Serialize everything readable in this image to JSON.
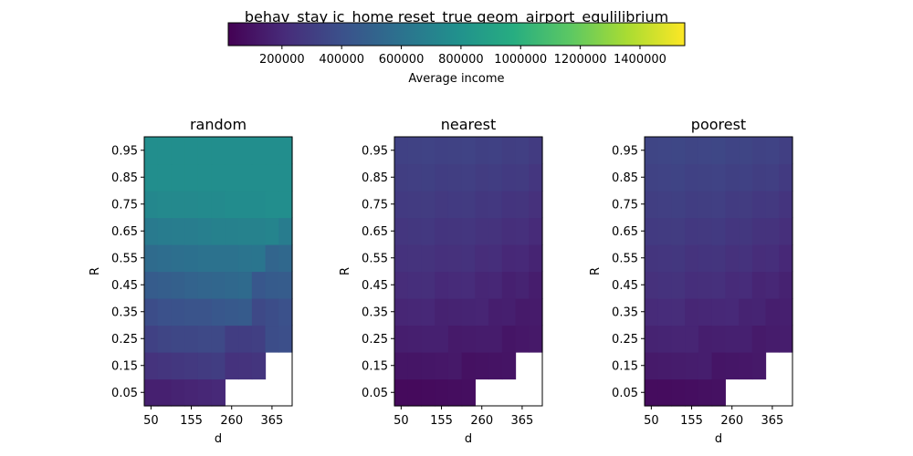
{
  "figure": {
    "title": "behav_stay ic_home reset_true geom_airport_equlilibrium"
  },
  "colorbar": {
    "label": "Average income",
    "colormap": "viridis",
    "range": [
      20000,
      1550000
    ],
    "ticks": [
      "200000",
      "400000",
      "600000",
      "800000",
      "1000000",
      "1200000",
      "1400000"
    ],
    "tick_values": [
      200000,
      400000,
      600000,
      800000,
      1000000,
      1200000,
      1400000
    ]
  },
  "chart_data": [
    {
      "type": "heatmap",
      "title": "random",
      "xlabel": "d",
      "ylabel": "R",
      "x": [
        50,
        85,
        120,
        155,
        190,
        225,
        260,
        295,
        330,
        365,
        400
      ],
      "y": [
        0.05,
        0.15,
        0.25,
        0.35,
        0.45,
        0.55,
        0.65,
        0.75,
        0.85,
        0.95
      ],
      "x_ticks": [
        "50",
        "155",
        "260",
        "365"
      ],
      "y_ticks": [
        "0.05",
        "0.15",
        "0.25",
        "0.35",
        "0.45",
        "0.55",
        "0.65",
        "0.75",
        "0.85",
        "0.95"
      ],
      "missing_value": null,
      "values": [
        [
          160000,
          160000,
          170000,
          180000,
          190000,
          200000,
          null,
          null,
          null,
          null,
          null
        ],
        [
          250000,
          260000,
          270000,
          280000,
          290000,
          300000,
          240000,
          250000,
          260000,
          null,
          null
        ],
        [
          320000,
          340000,
          350000,
          350000,
          360000,
          360000,
          300000,
          300000,
          310000,
          380000,
          390000
        ],
        [
          380000,
          400000,
          410000,
          420000,
          420000,
          440000,
          450000,
          460000,
          360000,
          380000,
          400000
        ],
        [
          470000,
          480000,
          490000,
          510000,
          520000,
          530000,
          540000,
          550000,
          440000,
          460000,
          470000
        ],
        [
          560000,
          570000,
          580000,
          590000,
          600000,
          600000,
          600000,
          610000,
          620000,
          520000,
          540000
        ],
        [
          650000,
          660000,
          670000,
          670000,
          680000,
          690000,
          690000,
          700000,
          700000,
          710000,
          660000
        ],
        [
          730000,
          740000,
          740000,
          740000,
          750000,
          750000,
          760000,
          760000,
          760000,
          770000,
          770000
        ],
        [
          770000,
          770000,
          770000,
          770000,
          770000,
          770000,
          770000,
          770000,
          770000,
          770000,
          770000
        ],
        [
          770000,
          770000,
          770000,
          770000,
          770000,
          770000,
          770000,
          770000,
          770000,
          770000,
          770000
        ]
      ]
    },
    {
      "type": "heatmap",
      "title": "nearest",
      "xlabel": "d",
      "ylabel": "R",
      "x": [
        50,
        85,
        120,
        155,
        190,
        225,
        260,
        295,
        330,
        365,
        400
      ],
      "y": [
        0.05,
        0.15,
        0.25,
        0.35,
        0.45,
        0.55,
        0.65,
        0.75,
        0.85,
        0.95
      ],
      "x_ticks": [
        "50",
        "155",
        "260",
        "365"
      ],
      "y_ticks": [
        "0.05",
        "0.15",
        "0.25",
        "0.35",
        "0.45",
        "0.55",
        "0.65",
        "0.75",
        "0.85",
        "0.95"
      ],
      "missing_value": null,
      "values": [
        [
          60000,
          60000,
          65000,
          70000,
          75000,
          80000,
          null,
          null,
          null,
          null,
          null
        ],
        [
          110000,
          110000,
          115000,
          120000,
          125000,
          90000,
          95000,
          100000,
          105000,
          null,
          null
        ],
        [
          150000,
          155000,
          160000,
          160000,
          130000,
          135000,
          140000,
          140000,
          110000,
          120000,
          125000
        ],
        [
          185000,
          190000,
          195000,
          165000,
          170000,
          175000,
          180000,
          150000,
          155000,
          130000,
          135000
        ],
        [
          215000,
          220000,
          225000,
          200000,
          205000,
          210000,
          185000,
          190000,
          160000,
          170000,
          145000
        ],
        [
          240000,
          245000,
          250000,
          230000,
          235000,
          240000,
          215000,
          220000,
          195000,
          200000,
          175000
        ],
        [
          265000,
          270000,
          275000,
          255000,
          260000,
          265000,
          245000,
          250000,
          225000,
          230000,
          205000
        ],
        [
          285000,
          290000,
          295000,
          280000,
          285000,
          290000,
          270000,
          275000,
          255000,
          260000,
          235000
        ],
        [
          305000,
          310000,
          315000,
          300000,
          305000,
          310000,
          295000,
          300000,
          285000,
          290000,
          265000
        ],
        [
          320000,
          325000,
          330000,
          320000,
          325000,
          330000,
          315000,
          320000,
          305000,
          310000,
          290000
        ]
      ]
    },
    {
      "type": "heatmap",
      "title": "poorest",
      "xlabel": "d",
      "ylabel": "R",
      "x": [
        50,
        85,
        120,
        155,
        190,
        225,
        260,
        295,
        330,
        365,
        400
      ],
      "y": [
        0.05,
        0.15,
        0.25,
        0.35,
        0.45,
        0.55,
        0.65,
        0.75,
        0.85,
        0.95
      ],
      "x_ticks": [
        "50",
        "155",
        "260",
        "365"
      ],
      "y_ticks": [
        "0.05",
        "0.15",
        "0.25",
        "0.35",
        "0.45",
        "0.55",
        "0.65",
        "0.75",
        "0.85",
        "0.95"
      ],
      "missing_value": null,
      "values": [
        [
          70000,
          70000,
          75000,
          80000,
          85000,
          90000,
          null,
          null,
          null,
          null,
          null
        ],
        [
          130000,
          135000,
          140000,
          145000,
          150000,
          110000,
          115000,
          120000,
          125000,
          null,
          null
        ],
        [
          170000,
          175000,
          180000,
          180000,
          150000,
          155000,
          160000,
          160000,
          130000,
          140000,
          145000
        ],
        [
          205000,
          210000,
          215000,
          185000,
          190000,
          195000,
          200000,
          170000,
          175000,
          150000,
          155000
        ],
        [
          235000,
          240000,
          245000,
          220000,
          225000,
          230000,
          205000,
          210000,
          180000,
          190000,
          165000
        ],
        [
          260000,
          265000,
          270000,
          250000,
          255000,
          260000,
          235000,
          240000,
          215000,
          220000,
          195000
        ],
        [
          285000,
          290000,
          295000,
          275000,
          280000,
          285000,
          265000,
          270000,
          245000,
          250000,
          225000
        ],
        [
          305000,
          310000,
          315000,
          300000,
          305000,
          310000,
          290000,
          295000,
          275000,
          280000,
          255000
        ],
        [
          325000,
          330000,
          335000,
          320000,
          325000,
          330000,
          315000,
          320000,
          305000,
          310000,
          285000
        ],
        [
          340000,
          345000,
          350000,
          340000,
          345000,
          350000,
          335000,
          340000,
          325000,
          330000,
          310000
        ]
      ]
    }
  ]
}
